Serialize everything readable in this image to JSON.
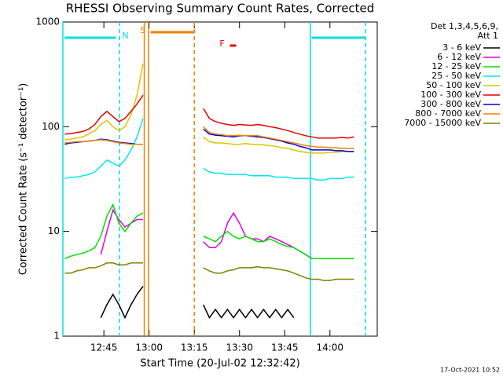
{
  "chart_data": {
    "type": "line",
    "title": "RHESSI Observing Summary Count Rates, Corrected",
    "xlabel": "Start Time (20-Jul-02 12:32:42)",
    "ylabel": "Corrected Count Rate (s⁻¹ detector⁻¹)",
    "legend_title": [
      "Det 1,3,4,5,6,9,",
      "Att 1"
    ],
    "footer": "17-Oct-2021 10:52",
    "log_y": true,
    "xlim": [
      751.4,
      855.7
    ],
    "ylim": [
      1,
      1000
    ],
    "xticks": [
      {
        "value": 765,
        "label": "12:45"
      },
      {
        "value": 780,
        "label": "13:00"
      },
      {
        "value": 795,
        "label": "13:15"
      },
      {
        "value": 810,
        "label": "13:30"
      },
      {
        "value": 825,
        "label": "13:45"
      },
      {
        "value": 840,
        "label": "14:00"
      }
    ],
    "yticks": [
      1,
      10,
      100,
      1000
    ],
    "x": [
      752,
      754,
      756,
      758,
      760,
      762,
      764,
      766,
      768,
      770,
      772,
      774,
      776,
      778,
      788,
      798,
      800,
      802,
      804,
      806,
      808,
      810,
      812,
      814,
      816,
      818,
      820,
      822,
      824,
      826,
      828,
      830,
      832,
      834,
      836,
      838,
      840,
      842,
      844,
      846,
      848
    ],
    "series": [
      {
        "name": "3 - 6 keV",
        "color": "#000000",
        "values": [
          null,
          null,
          null,
          null,
          null,
          null,
          1.5,
          2,
          2.5,
          2,
          1.5,
          2,
          2.5,
          3,
          null,
          2,
          1.5,
          1.8,
          1.5,
          1.8,
          1.5,
          1.8,
          1.5,
          1.8,
          1.5,
          1.8,
          1.5,
          1.8,
          1.5,
          1.8,
          1.5,
          null,
          null,
          null,
          null,
          null,
          null,
          null,
          null,
          null,
          null
        ]
      },
      {
        "name": "6 - 12 keV",
        "color": "#e000e0",
        "values": [
          null,
          null,
          null,
          null,
          null,
          null,
          6,
          10,
          16,
          13,
          11,
          12,
          13,
          13,
          null,
          8,
          7,
          7,
          8,
          12,
          15,
          12,
          9,
          8.5,
          8.5,
          8,
          9,
          8.5,
          8,
          7.5,
          7,
          6.5,
          6,
          5.5,
          null,
          null,
          null,
          null,
          null,
          null,
          null
        ]
      },
      {
        "name": "12 - 25 keV",
        "color": "#00e000",
        "values": [
          5.5,
          5.8,
          6,
          6.2,
          6.5,
          7,
          9,
          14,
          18,
          12,
          10,
          12,
          14,
          15,
          null,
          9,
          8.5,
          8,
          9,
          10,
          9,
          8.5,
          9,
          8.5,
          8,
          8,
          8.5,
          8,
          7.5,
          7.2,
          7,
          6.5,
          6,
          5.5,
          5.5,
          5.5,
          5.5,
          5.5,
          5.5,
          5.5,
          5.5
        ]
      },
      {
        "name": "25 - 50 keV",
        "color": "#00e8e8",
        "values": [
          32,
          33,
          33,
          34,
          35,
          37,
          42,
          48,
          45,
          42,
          48,
          60,
          80,
          120,
          null,
          40,
          37,
          36,
          36,
          35,
          35,
          35,
          35,
          34,
          34,
          34,
          34,
          33,
          33,
          33,
          32,
          32,
          32,
          32,
          31,
          31,
          32,
          32,
          32,
          33,
          33
        ]
      },
      {
        "name": "50 - 100 keV",
        "color": "#d8c800",
        "values": [
          75,
          76,
          78,
          80,
          85,
          92,
          105,
          115,
          100,
          92,
          100,
          130,
          200,
          400,
          null,
          80,
          72,
          70,
          70,
          69,
          68,
          68,
          69,
          68,
          68,
          67,
          66,
          65,
          63,
          62,
          60,
          58,
          57,
          56,
          56,
          56,
          57,
          57,
          58,
          58,
          58
        ]
      },
      {
        "name": "100 - 300 keV",
        "color": "#e80000",
        "values": [
          85,
          86,
          88,
          90,
          95,
          105,
          125,
          140,
          125,
          112,
          120,
          140,
          165,
          200,
          null,
          150,
          120,
          112,
          108,
          105,
          103,
          105,
          104,
          103,
          105,
          103,
          100,
          98,
          95,
          92,
          88,
          85,
          82,
          80,
          78,
          78,
          78,
          78,
          79,
          78,
          80
        ]
      },
      {
        "name": "300 - 800 keV",
        "color": "#0000e0",
        "values": [
          68,
          70,
          71,
          72,
          73,
          74,
          76,
          75,
          73,
          71,
          70,
          69,
          68,
          68,
          null,
          95,
          85,
          83,
          82,
          81,
          80,
          82,
          82,
          81,
          80,
          79,
          77,
          75,
          73,
          70,
          68,
          65,
          63,
          60,
          60,
          60,
          60,
          59,
          59,
          58,
          58
        ]
      },
      {
        "name": "800 - 7000 keV",
        "color": "#f08000",
        "values": [
          70,
          71,
          72,
          72,
          73,
          74,
          75,
          74,
          72,
          70,
          69,
          68,
          68,
          68,
          null,
          100,
          88,
          85,
          84,
          82,
          82,
          83,
          82,
          82,
          82,
          80,
          78,
          76,
          74,
          72,
          70,
          68,
          66,
          65,
          64,
          64,
          63,
          63,
          62,
          62,
          62
        ]
      },
      {
        "name": "7000 - 15000 keV",
        "color": "#808000",
        "values": [
          4,
          4,
          4.2,
          4.3,
          4.5,
          4.5,
          4.7,
          5,
          5,
          4.8,
          4.8,
          5,
          5,
          5,
          null,
          4.5,
          4.2,
          4,
          4,
          4.2,
          4.3,
          4.5,
          4.5,
          4.5,
          4.6,
          4.5,
          4.5,
          4.4,
          4.3,
          4.2,
          4,
          3.8,
          3.6,
          3.5,
          3.5,
          3.4,
          3.4,
          3.5,
          3.5,
          3.5,
          3.5
        ]
      }
    ],
    "markers": [
      {
        "x": 751.4,
        "color": "#00e0e0",
        "dashed": false
      },
      {
        "x": 770.2,
        "color": "#00e0e0",
        "dashed": true
      },
      {
        "x": 778.4,
        "color": "#f08000",
        "dashed": false
      },
      {
        "x": 779.8,
        "color": "#f08000",
        "dashed": false
      },
      {
        "x": 795,
        "color": "#f08000",
        "dashed": true
      },
      {
        "x": 833.5,
        "color": "#00e0e0",
        "dashed": false
      },
      {
        "x": 851.8,
        "color": "#00e0e0",
        "dashed": true
      }
    ],
    "flags": [
      {
        "label": "N",
        "color": "#00e0e0",
        "spans": [
          [
            751.4,
            769
          ],
          [
            833.5,
            851.8
          ]
        ]
      },
      {
        "label": "S",
        "color": "#f08000",
        "spans": [
          [
            780,
            795
          ]
        ]
      },
      {
        "label": "F",
        "color": "#e80000",
        "spans": [
          [
            806.3,
            808.9
          ]
        ]
      }
    ]
  }
}
